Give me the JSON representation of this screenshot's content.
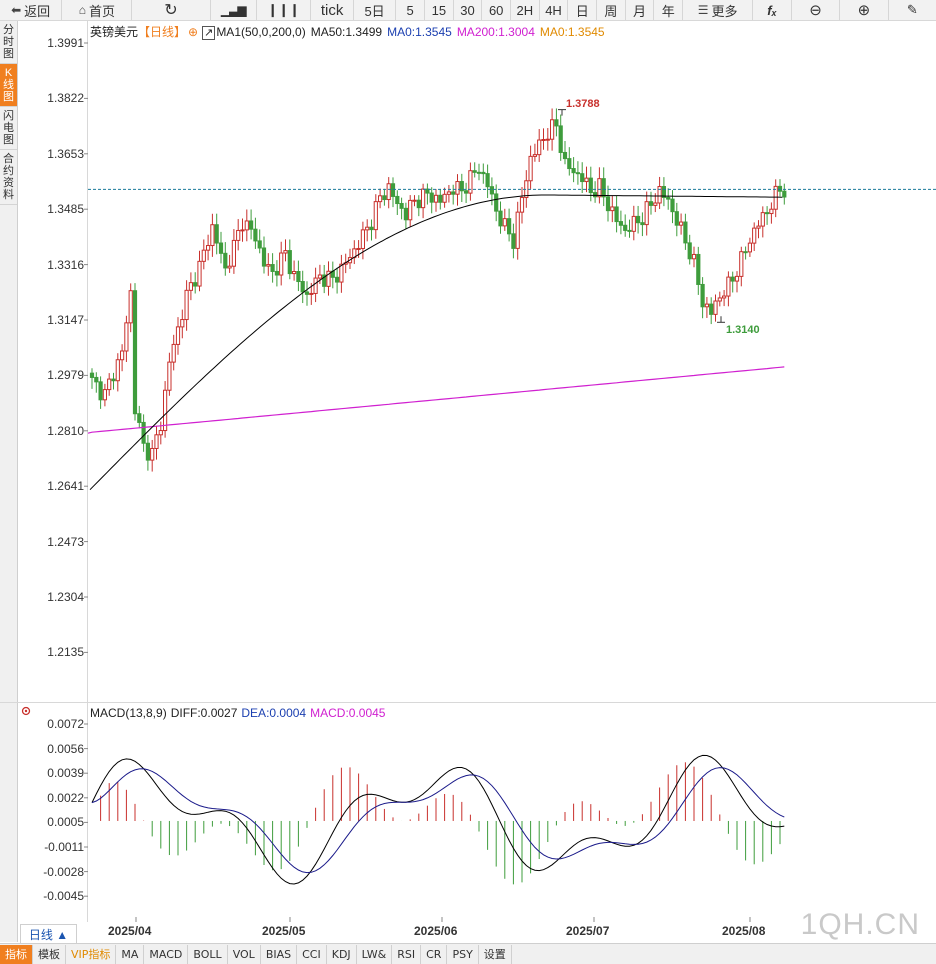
{
  "toolbar": {
    "back": "返回",
    "home": "首页",
    "tick": "tick",
    "periods": [
      "5日",
      "5",
      "15",
      "30",
      "60",
      "2H",
      "4H",
      "日",
      "周",
      "月",
      "年"
    ],
    "more": "更多"
  },
  "sidebar": [
    "分时图",
    "K线图",
    "闪电图",
    "合约资料"
  ],
  "legend": {
    "name": "英镑美元",
    "period": "【日线】",
    "ma_group": "MA1(50,0,200,0)",
    "ma50": "MA50:1.3499",
    "ma0a": "MA0:1.3545",
    "ma200": "MA200:1.3004",
    "ma0b": "MA0:1.3545"
  },
  "price_axis": [
    "1.3991",
    "1.3822",
    "1.3653",
    "1.3485",
    "1.3316",
    "1.3147",
    "1.2979",
    "1.2810",
    "1.2641",
    "1.2473",
    "1.2304",
    "1.2135"
  ],
  "annotations": {
    "high": "1.3788",
    "low": "1.3140"
  },
  "macd_legend": {
    "name": "MACD(13,8,9)",
    "diff": "DIFF:0.0027",
    "dea": "DEA:0.0004",
    "macd": "MACD:0.0045"
  },
  "macd_axis": [
    "0.0072",
    "0.0056",
    "0.0039",
    "0.0022",
    "0.0005",
    "-0.0011",
    "-0.0028",
    "-0.0045"
  ],
  "x_axis": [
    "2025/04",
    "2025/05",
    "2025/06",
    "2025/07",
    "2025/08"
  ],
  "period_selector": "日线 ▲",
  "bottom_tabs": [
    "指标",
    "模板",
    "VIP指标",
    "MA",
    "MACD",
    "BOLL",
    "VOL",
    "BIAS",
    "CCI",
    "KDJ",
    "LW&",
    "RSI",
    "CR",
    "PSY",
    "设置"
  ],
  "watermark": "1QH.CN",
  "colors": {
    "up": "#c8302c",
    "down": "#3e9c3c",
    "ma50": "#000000",
    "ma200": "#d020d0",
    "accent": "#f07f1f"
  },
  "chart_data": [
    {
      "type": "candlestick",
      "title": "英镑美元【日线】",
      "ylim": [
        1.2135,
        1.3991
      ],
      "x": [
        "2025/04",
        "2025/05",
        "2025/06",
        "2025/07",
        "2025/08"
      ],
      "annotations": [
        {
          "label": "1.3788",
          "kind": "high"
        },
        {
          "label": "1.3140",
          "kind": "low"
        }
      ],
      "last_price": 1.3545,
      "series": [
        {
          "name": "MA50",
          "last": 1.3499
        },
        {
          "name": "MA200",
          "last": 1.3004
        }
      ]
    },
    {
      "type": "bar",
      "title": "MACD(13,8,9)",
      "ylim": [
        -0.0045,
        0.0072
      ],
      "series": [
        {
          "name": "DIFF",
          "last": 0.0027
        },
        {
          "name": "DEA",
          "last": 0.0004
        },
        {
          "name": "MACD",
          "last": 0.0045
        }
      ]
    }
  ]
}
